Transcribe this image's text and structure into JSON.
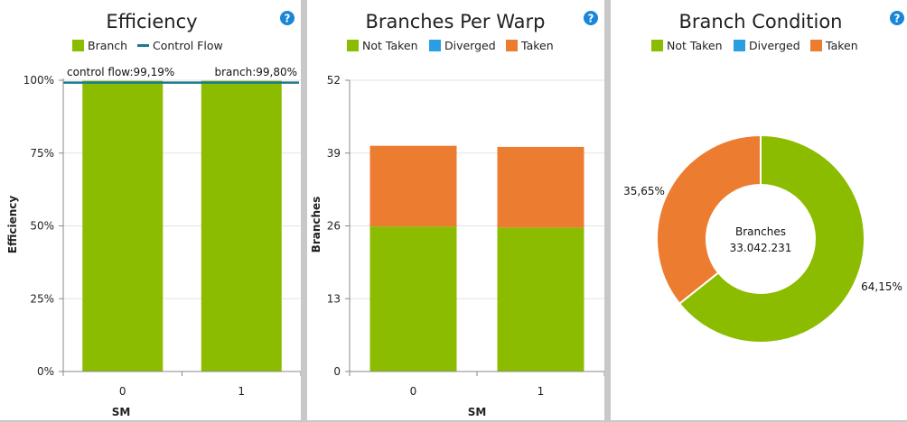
{
  "help_symbol": "?",
  "colors": {
    "branch": "#8cbc00",
    "not_taken": "#8cbc00",
    "diverged": "#2a9ee0",
    "taken": "#ec7c30",
    "control_flow": "#1c7a8c",
    "grid": "#e3e3e3",
    "axis": "#888888"
  },
  "chart_data": [
    {
      "type": "bar",
      "title": "Efficiency",
      "categories": [
        "0",
        "1"
      ],
      "series": [
        {
          "name": "Branch",
          "values": [
            99.8,
            99.8
          ]
        }
      ],
      "lines": [
        {
          "name": "Control Flow",
          "values": [
            99.19,
            99.19
          ]
        }
      ],
      "yticks": [
        "0%",
        "25%",
        "50%",
        "75%",
        "100%"
      ],
      "ylim": [
        0,
        100
      ],
      "xlabel": "SM",
      "ylabel": "Efficiency",
      "annotations": {
        "left": "control flow:99,19%",
        "right": "branch:99,80%"
      },
      "legend_position": "top",
      "grid": true
    },
    {
      "type": "bar",
      "stacked": true,
      "title": "Branches Per Warp",
      "categories": [
        "0",
        "1"
      ],
      "series": [
        {
          "name": "Not Taken",
          "values": [
            25.9,
            25.7
          ]
        },
        {
          "name": "Diverged",
          "values": [
            0,
            0
          ]
        },
        {
          "name": "Taken",
          "values": [
            14.4,
            14.4
          ]
        }
      ],
      "yticks": [
        "0",
        "13",
        "26",
        "39",
        "52"
      ],
      "ylim": [
        0,
        52
      ],
      "xlabel": "SM",
      "ylabel": "Branches",
      "legend_position": "top",
      "grid": true
    },
    {
      "type": "pie",
      "donut": true,
      "title": "Branch Condition",
      "legend": [
        "Not Taken",
        "Diverged",
        "Taken"
      ],
      "slices": [
        {
          "name": "Not Taken",
          "value": 64.15,
          "label": "64,15%"
        },
        {
          "name": "Taken",
          "value": 35.65,
          "label": "35,65%"
        }
      ],
      "center_label": "Branches",
      "center_value": "33.042.231",
      "legend_position": "top"
    }
  ]
}
